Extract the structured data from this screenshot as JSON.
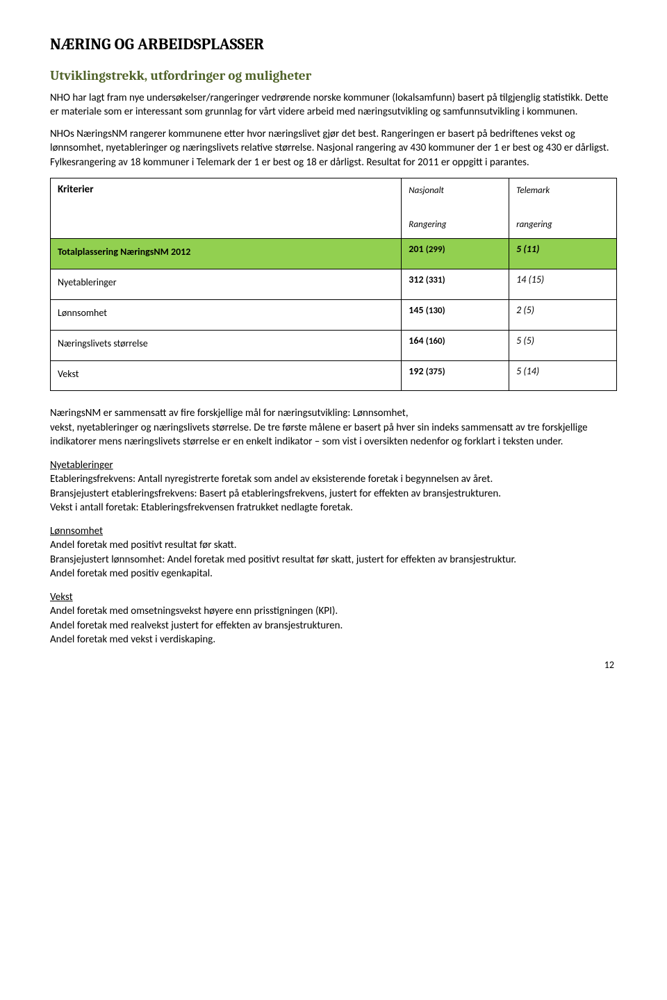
{
  "title": "NÆRING OG ARBEIDSPLASSER",
  "subtitle": "Utviklingstrekk, utfordringer og muligheter",
  "intro": {
    "p1": "NHO har  lagt fram nye undersøkelser/rangeringer vedrørende norske kommuner (lokalsamfunn) basert på tilgjenglig statistikk. Dette er materiale som er interessant som grunnlag for vårt videre arbeid med næringsutvikling og samfunnsutvikling i kommunen.",
    "p2": "NHOs NæringsNM rangerer kommunene etter hvor næringslivet gjør det best. Rangeringen er basert på bedriftenes vekst og lønnsomhet, nyetableringer og næringslivets relative størrelse. Nasjonal rangering av 430 kommuner der 1 er best og 430 er dårligst. Fylkesrangering av 18 kommuner i Telemark der 1 er best og 18 er dårligst. Resultat for 2011 er oppgitt i parantes."
  },
  "table": {
    "headers": {
      "kriterier": "Kriterier",
      "nasjonalt": "Nasjonalt",
      "telemark": "Telemark",
      "rangering": "Rangering",
      "rangering2": "rangering"
    },
    "rows": [
      {
        "label": "Totalplassering NæringsNM 2012",
        "nat": "201",
        "nat_p": "(299)",
        "tel": "5 (11)",
        "hl": true,
        "bold": true
      },
      {
        "label": "Nyetableringer",
        "nat": "312",
        "nat_p": "(331)",
        "tel": "14 (15)"
      },
      {
        "label": "Lønnsomhet",
        "nat": "145",
        "nat_p": "(130)",
        "tel": "2  (5)"
      },
      {
        "label": "Næringslivets størrelse",
        "nat": "164",
        "nat_p": "(160)",
        "tel": "5  (5)"
      },
      {
        "label": "Vekst",
        "nat": "192",
        "nat_p": "(375)",
        "tel": "5 (14)"
      }
    ]
  },
  "body": {
    "p1": "NæringsNM er sammensatt av fire forskjellige mål for næringsutvikling: Lønnsomhet,",
    "p2": "vekst, nyetableringer og næringslivets størrelse. De tre første målene er basert på hver sin indeks sammensatt av tre forskjellige indikatorer mens næringslivets størrelse er en enkelt indikator – som vist i oversikten nedenfor og forklart i teksten under."
  },
  "sections": [
    {
      "heading": "Nyetableringer",
      "lines": [
        "Etableringsfrekvens: Antall nyregistrerte foretak som andel av eksisterende foretak i begynnelsen av året.",
        "Bransjejustert etableringsfrekvens: Basert på etableringsfrekvens, justert for effekten av bransjestrukturen.",
        "Vekst i antall foretak: Etableringsfrekvensen fratrukket nedlagte foretak."
      ]
    },
    {
      "heading": "Lønnsomhet",
      "lines": [
        "Andel foretak med positivt resultat før skatt.",
        "Bransjejustert lønnsomhet: Andel foretak med positivt resultat før skatt, justert for effekten av bransjestruktur.",
        "Andel foretak med positiv egenkapital."
      ]
    },
    {
      "heading": "Vekst",
      "lines": [
        "Andel foretak med omsetningsvekst høyere enn prisstigningen (KPI).",
        "Andel foretak med realvekst justert for effekten av bransjestrukturen.",
        "Andel foretak med vekst i verdiskaping."
      ]
    }
  ],
  "pagenum": "12"
}
